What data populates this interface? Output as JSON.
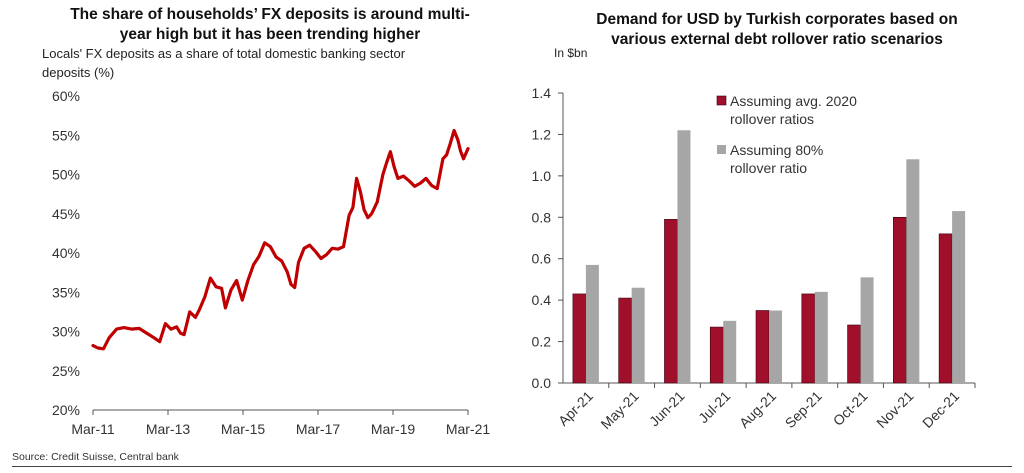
{
  "chart_data": [
    {
      "type": "line",
      "title": "The share of households’ FX deposits is around multi-year high but it has been trending higher",
      "title_lines": [
        "The share of households’ FX deposits is around multi-",
        "year high but it has been trending higher"
      ],
      "subtitle_lines": [
        "Locals' FX deposits as a share of total domestic banking sector",
        "deposits (%)"
      ],
      "xlabel": "",
      "ylabel": "",
      "ylim": [
        20,
        60
      ],
      "yticks": [
        20,
        25,
        30,
        35,
        40,
        45,
        50,
        55,
        60
      ],
      "ytick_labels": [
        "20%",
        "25%",
        "30%",
        "35%",
        "40%",
        "45%",
        "50%",
        "55%",
        "60%"
      ],
      "xlim": [
        2011.17,
        2021.17
      ],
      "xticks": [
        2011.17,
        2013.17,
        2015.17,
        2017.17,
        2019.17,
        2021.17
      ],
      "xtick_labels": [
        "Mar-11",
        "Mar-13",
        "Mar-15",
        "Mar-17",
        "Mar-19",
        "Mar-21"
      ],
      "grid": false,
      "color": "#c00000",
      "series": [
        {
          "name": "Locals' FX deposits share",
          "x": [
            2011.17,
            2011.3,
            2011.45,
            2011.6,
            2011.8,
            2012.0,
            2012.2,
            2012.4,
            2012.6,
            2012.8,
            2012.95,
            2013.1,
            2013.25,
            2013.4,
            2013.5,
            2013.6,
            2013.75,
            2013.9,
            2014.0,
            2014.15,
            2014.3,
            2014.45,
            2014.6,
            2014.7,
            2014.85,
            2015.0,
            2015.15,
            2015.3,
            2015.45,
            2015.6,
            2015.75,
            2015.9,
            2016.05,
            2016.2,
            2016.35,
            2016.45,
            2016.55,
            2016.65,
            2016.8,
            2016.95,
            2017.1,
            2017.25,
            2017.4,
            2017.55,
            2017.7,
            2017.85,
            2018.0,
            2018.1,
            2018.2,
            2018.3,
            2018.4,
            2018.5,
            2018.6,
            2018.75,
            2018.9,
            2019.0,
            2019.1,
            2019.2,
            2019.3,
            2019.45,
            2019.6,
            2019.75,
            2019.9,
            2020.05,
            2020.2,
            2020.35,
            2020.5,
            2020.6,
            2020.7,
            2020.8,
            2020.9,
            2020.97,
            2021.05,
            2021.17
          ],
          "y": [
            28.2,
            27.9,
            27.8,
            29.2,
            30.3,
            30.5,
            30.3,
            30.4,
            29.8,
            29.2,
            28.7,
            31.0,
            30.3,
            30.6,
            29.8,
            29.6,
            32.5,
            31.8,
            32.7,
            34.4,
            36.8,
            35.7,
            35.5,
            33.0,
            35.3,
            36.5,
            34.0,
            36.5,
            38.5,
            39.6,
            41.3,
            40.8,
            39.5,
            39.0,
            37.6,
            36.0,
            35.6,
            38.8,
            40.6,
            41.0,
            40.2,
            39.3,
            39.8,
            40.6,
            40.5,
            40.8,
            44.8,
            45.8,
            49.5,
            47.8,
            45.5,
            44.5,
            45.0,
            46.5,
            50.0,
            51.5,
            52.9,
            51.0,
            49.5,
            49.8,
            49.2,
            48.5,
            48.9,
            49.5,
            48.6,
            48.2,
            52.0,
            52.5,
            54.0,
            55.6,
            54.4,
            53.0,
            52.0,
            53.3
          ]
        }
      ],
      "source": "Source: Credit Suisse, Central bank"
    },
    {
      "type": "bar",
      "title": "Demand for USD by Turkish corporates based on various external debt rollover ratio scenarios",
      "title_lines": [
        "Demand for USD by Turkish corporates based on",
        "various external debt rollover ratio scenarios"
      ],
      "ylabel": "In $bn",
      "xlabel": "",
      "ylim": [
        0,
        1.4
      ],
      "yticks": [
        0,
        0.2,
        0.4,
        0.6,
        0.8,
        1.0,
        1.2,
        1.4
      ],
      "ytick_labels": [
        "0.0",
        "0.2",
        "0.4",
        "0.6",
        "0.8",
        "1.0",
        "1.2",
        "1.4"
      ],
      "grid": false,
      "legend_position": "top-right",
      "categories": [
        "Apr-21",
        "May-21",
        "Jun-21",
        "Jul-21",
        "Aug-21",
        "Sep-21",
        "Oct-21",
        "Nov-21",
        "Dec-21"
      ],
      "series": [
        {
          "name": "Assuming avg. 2020 rollover ratios",
          "legend_lines": [
            "Assuming avg. 2020",
            "rollover ratios"
          ],
          "color": "#a0102a",
          "values": [
            0.43,
            0.41,
            0.79,
            0.27,
            0.35,
            0.43,
            0.28,
            0.8,
            0.72
          ]
        },
        {
          "name": "Assuming 80% rollover ratio",
          "legend_lines": [
            "Assuming 80%",
            "rollover ratio"
          ],
          "color": "#a6a6a6",
          "values": [
            0.57,
            0.46,
            1.22,
            0.3,
            0.35,
            0.44,
            0.51,
            1.08,
            0.83
          ]
        }
      ]
    }
  ]
}
